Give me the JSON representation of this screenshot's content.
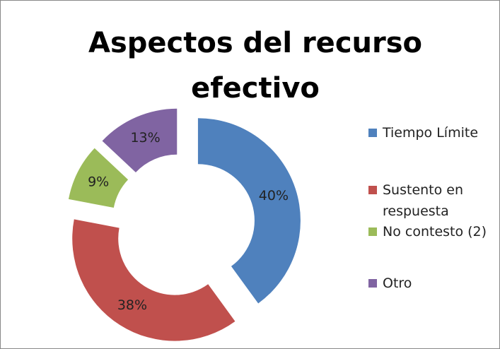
{
  "chart_data": {
    "type": "donut",
    "title": "Aspectos del recurso efectivo",
    "categories": [
      "Tiempo Límite",
      "Sustento en respuesta",
      "No contesto (2)",
      "Otro"
    ],
    "values": [
      40,
      38,
      9,
      13
    ],
    "value_labels": [
      "40%",
      "38%",
      "9%",
      "13%"
    ],
    "colors": [
      "#4f81bd",
      "#c0504d",
      "#9bbb59",
      "#8064a2"
    ],
    "legend": "right"
  }
}
